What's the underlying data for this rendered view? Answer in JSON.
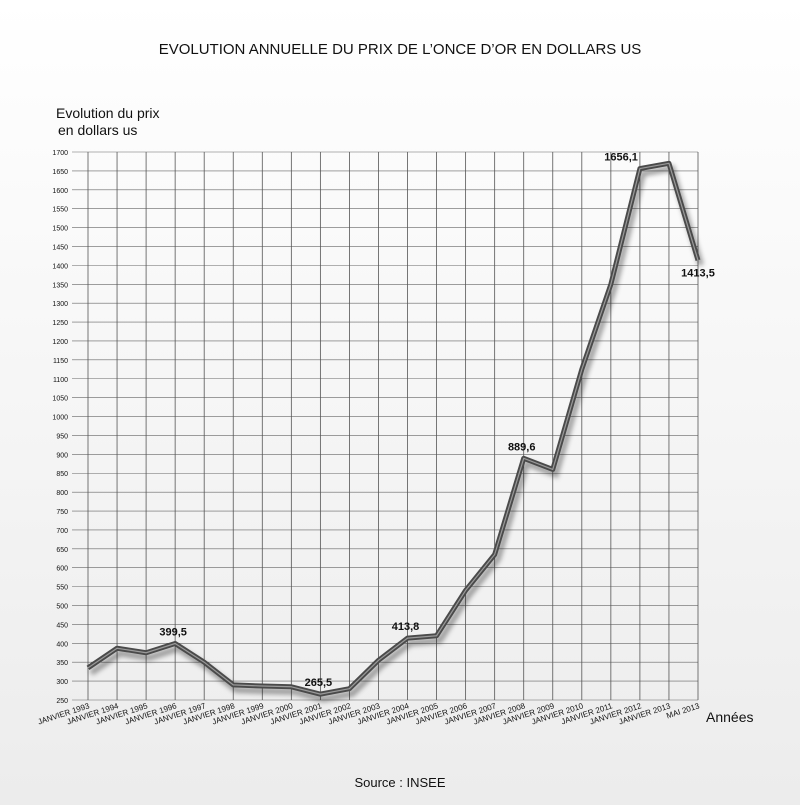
{
  "chart_data": {
    "type": "line",
    "title": "EVOLUTION ANNUELLE DU PRIX DE L’ONCE D’OR EN DOLLARS US",
    "y_label": [
      "Evolution du prix",
      "en dollars us"
    ],
    "x_label": "Années",
    "source": "Source : INSEE",
    "categories": [
      "JANVIER 1993",
      "JANVIER 1994",
      "JANVIER 1995",
      "JANVIER 1996",
      "JANVIER 1997",
      "JANVIER 1998",
      "JANVIER 1999",
      "JANVIER 2000",
      "JANVIER 2001",
      "JANVIER 2002",
      "JANVIER 2003",
      "JANVIER 2004",
      "JANVIER 2005",
      "JANVIER 2006",
      "JANVIER 2007",
      "JANVIER 2008",
      "JANVIER 2009",
      "JANVIER 2010",
      "JANVIER 2011",
      "JANVIER 2012",
      "JANVIER 2013",
      "MAI 2013"
    ],
    "series": [
      {
        "name": "Prix de l'once d'or",
        "color": "#4a4a4a",
        "values": [
          335,
          387,
          375,
          399.5,
          350,
          290,
          287,
          285,
          265.5,
          280,
          355,
          413.8,
          420,
          540,
          635,
          889.6,
          860,
          1125,
          1350,
          1656.1,
          1670,
          1413.5
        ],
        "value_labels": [
          null,
          null,
          null,
          "399,5",
          null,
          null,
          null,
          null,
          "265,5",
          null,
          null,
          "413,8",
          null,
          null,
          null,
          "889,6",
          null,
          null,
          null,
          "1656,1",
          null,
          "1413,5"
        ]
      }
    ],
    "ylim": [
      250,
      1700
    ],
    "yticks": [
      250,
      300,
      350,
      400,
      450,
      500,
      550,
      600,
      650,
      700,
      750,
      800,
      850,
      900,
      950,
      1000,
      1050,
      1100,
      1150,
      1200,
      1250,
      1300,
      1350,
      1400,
      1450,
      1500,
      1550,
      1600,
      1650,
      1700
    ],
    "grid": true
  }
}
